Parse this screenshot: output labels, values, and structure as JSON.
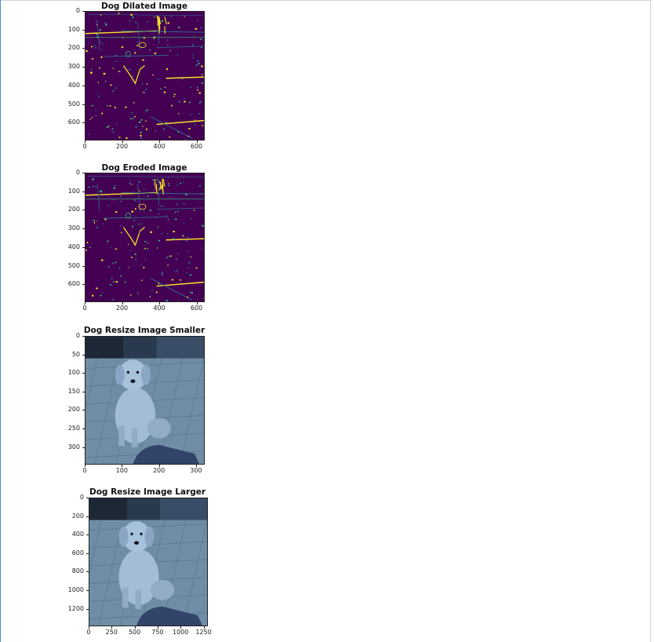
{
  "panels": [
    {
      "title": "Dog Dilated Image",
      "kind": "edges",
      "y_ticks": [
        "0",
        "100",
        "200",
        "300",
        "400",
        "500",
        "600"
      ],
      "x_ticks": [
        "0",
        "200",
        "400",
        "600"
      ],
      "colors": {
        "background": "#440154",
        "edge_a": "#fde725",
        "edge_b": "#35b779",
        "edge_c": "#31688e"
      }
    },
    {
      "title": "Dog Eroded Image",
      "kind": "edges",
      "y_ticks": [
        "0",
        "100",
        "200",
        "300",
        "400",
        "500",
        "600"
      ],
      "x_ticks": [
        "0",
        "200",
        "400",
        "600"
      ],
      "colors": {
        "background": "#440154",
        "edge_a": "#fde725",
        "edge_b": "#35b779",
        "edge_c": "#31688e"
      }
    },
    {
      "title": "Dog Resize Image Smaller",
      "kind": "photo",
      "y_ticks": [
        "0",
        "50",
        "100",
        "150",
        "200",
        "250",
        "300"
      ],
      "x_ticks": [
        "0",
        "100",
        "200",
        "300"
      ],
      "colors": {
        "floor": "#6f8ea6",
        "wall": "#2a3a4e",
        "dog": "#a9c2dc",
        "leg": "#33446a"
      }
    },
    {
      "title": "Dog Resize Image Larger",
      "kind": "photo",
      "y_ticks": [
        "0",
        "200",
        "400",
        "600",
        "800",
        "1000",
        "1200"
      ],
      "x_ticks": [
        "0",
        "250",
        "500",
        "750",
        "1000",
        "1250"
      ],
      "colors": {
        "floor": "#6f8ea6",
        "wall": "#2a3a4e",
        "dog": "#a9c2dc",
        "leg": "#33446a"
      }
    }
  ]
}
